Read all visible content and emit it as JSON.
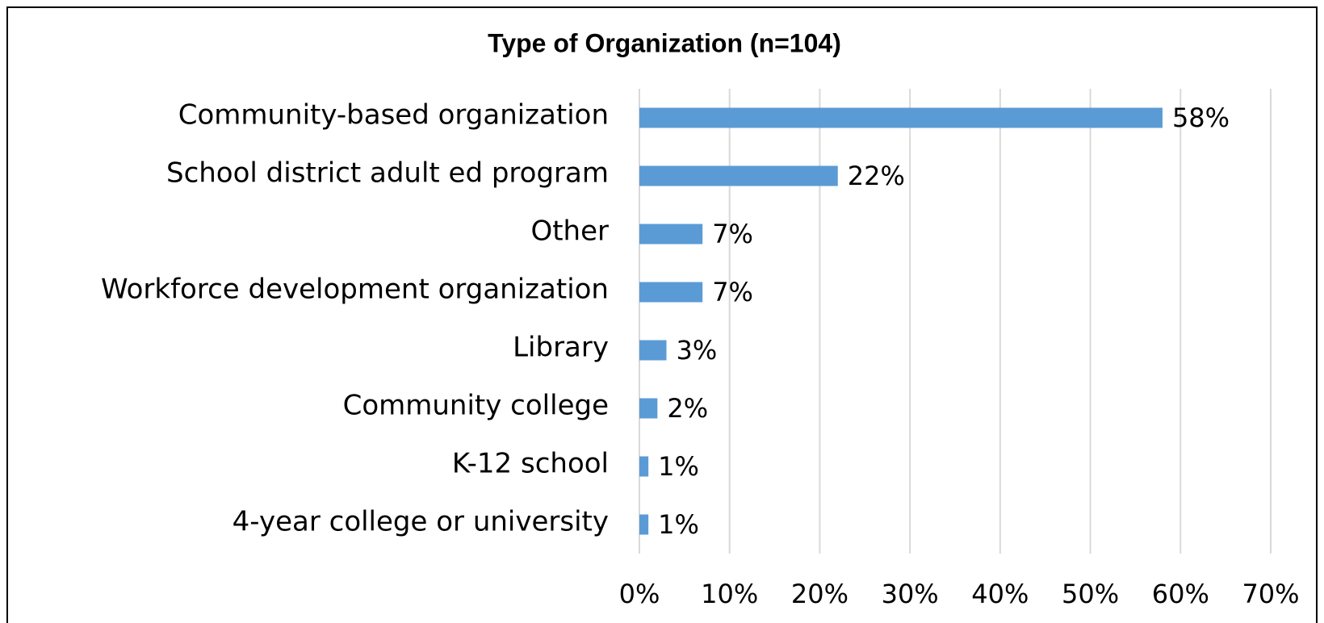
{
  "chart_data": {
    "type": "bar",
    "orientation": "horizontal",
    "title": "Type of Organization (n=104)",
    "categories": [
      "Community-based organization",
      "School district adult ed program",
      "Other",
      "Workforce development organization",
      "Library",
      "Community college",
      "K-12 school",
      "4-year college or university"
    ],
    "values": [
      58,
      22,
      7,
      7,
      3,
      2,
      1,
      1
    ],
    "value_labels": [
      "58%",
      "22%",
      "7%",
      "7%",
      "3%",
      "2%",
      "1%",
      "1%"
    ],
    "color": "#5b9bd5",
    "xlim": [
      0,
      70
    ],
    "xticks": [
      {
        "value": 0,
        "label": "0%"
      },
      {
        "value": 10,
        "label": "10%"
      },
      {
        "value": 20,
        "label": "20%"
      },
      {
        "value": 30,
        "label": "30%"
      },
      {
        "value": 40,
        "label": "40%"
      },
      {
        "value": 50,
        "label": "50%"
      },
      {
        "value": 60,
        "label": "60%"
      },
      {
        "value": 70,
        "label": "70%"
      }
    ],
    "grid": true
  }
}
